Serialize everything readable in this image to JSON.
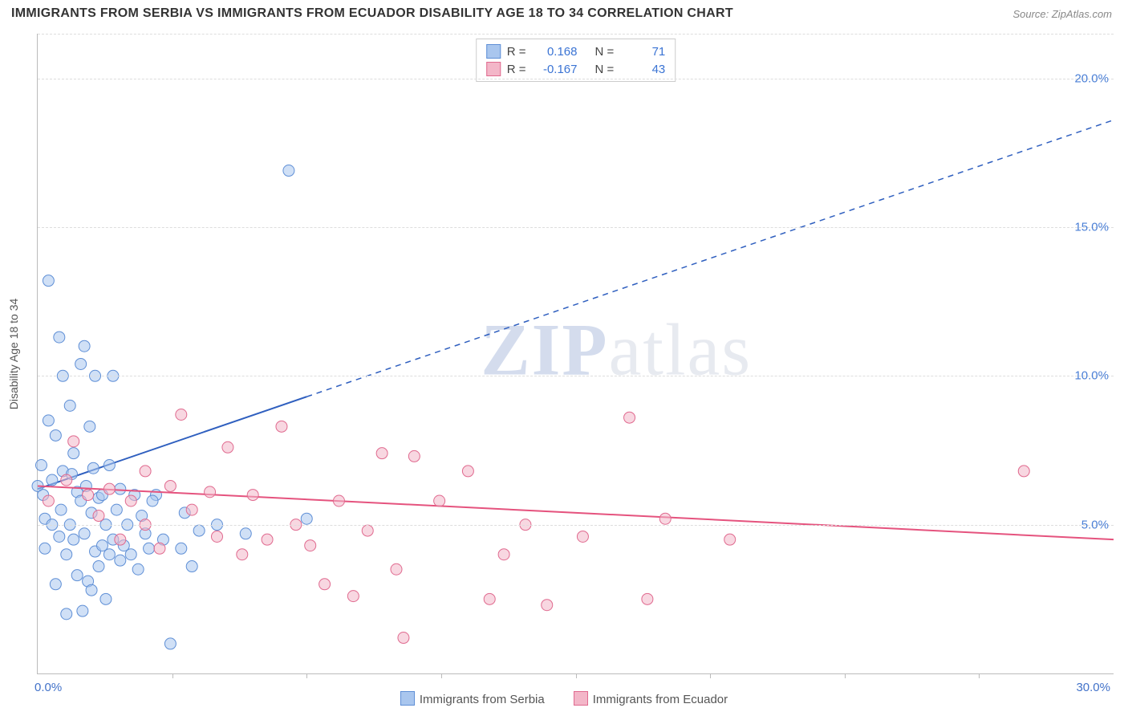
{
  "title": "IMMIGRANTS FROM SERBIA VS IMMIGRANTS FROM ECUADOR DISABILITY AGE 18 TO 34 CORRELATION CHART",
  "source": "Source: ZipAtlas.com",
  "y_axis_label": "Disability Age 18 to 34",
  "watermark_a": "ZIP",
  "watermark_b": "atlas",
  "chart": {
    "type": "scatter",
    "xlim": [
      0,
      30
    ],
    "ylim": [
      0,
      21.5
    ],
    "x_origin_label": "0.0%",
    "x_max_label": "30.0%",
    "y_ticks": [
      5.0,
      10.0,
      15.0,
      20.0
    ],
    "y_tick_labels": [
      "5.0%",
      "10.0%",
      "15.0%",
      "20.0%"
    ],
    "x_tick_positions": [
      3.75,
      7.5,
      11.25,
      15.0,
      18.75,
      22.5,
      26.25
    ],
    "grid_color": "#dddddd",
    "axis_color": "#bbbbbb",
    "background_color": "#ffffff",
    "marker_radius": 7,
    "marker_opacity": 0.55,
    "series": [
      {
        "name": "Immigrants from Serbia",
        "fill": "#a9c6ee",
        "stroke": "#5f8fd6",
        "trend": {
          "x1": 0,
          "y1": 6.2,
          "x2": 7.5,
          "y2": 9.3,
          "solid_until_x": 7.5,
          "dash_to_x": 30,
          "dash_to_y": 18.6,
          "color": "#2f5fbf",
          "width": 2
        },
        "stats": {
          "R": "0.168",
          "N": "71"
        },
        "points": [
          [
            0.0,
            6.3
          ],
          [
            0.1,
            7.0
          ],
          [
            0.15,
            6.0
          ],
          [
            0.2,
            4.2
          ],
          [
            0.2,
            5.2
          ],
          [
            0.3,
            8.5
          ],
          [
            0.3,
            13.2
          ],
          [
            0.4,
            6.5
          ],
          [
            0.4,
            5.0
          ],
          [
            0.5,
            8.0
          ],
          [
            0.5,
            3.0
          ],
          [
            0.6,
            11.3
          ],
          [
            0.6,
            4.6
          ],
          [
            0.65,
            5.5
          ],
          [
            0.7,
            10.0
          ],
          [
            0.7,
            6.8
          ],
          [
            0.8,
            4.0
          ],
          [
            0.8,
            2.0
          ],
          [
            0.9,
            5.0
          ],
          [
            0.9,
            9.0
          ],
          [
            1.0,
            4.5
          ],
          [
            1.0,
            7.4
          ],
          [
            1.1,
            6.1
          ],
          [
            1.1,
            3.3
          ],
          [
            1.2,
            10.4
          ],
          [
            1.2,
            5.8
          ],
          [
            1.25,
            2.1
          ],
          [
            1.3,
            4.7
          ],
          [
            1.3,
            11.0
          ],
          [
            1.35,
            6.3
          ],
          [
            1.4,
            3.1
          ],
          [
            1.45,
            8.3
          ],
          [
            1.5,
            5.4
          ],
          [
            1.5,
            2.8
          ],
          [
            1.55,
            6.9
          ],
          [
            1.6,
            4.1
          ],
          [
            1.6,
            10.0
          ],
          [
            1.7,
            5.9
          ],
          [
            1.7,
            3.6
          ],
          [
            1.8,
            4.3
          ],
          [
            1.8,
            6.0
          ],
          [
            1.9,
            5.0
          ],
          [
            1.9,
            2.5
          ],
          [
            2.0,
            4.0
          ],
          [
            2.0,
            7.0
          ],
          [
            2.1,
            10.0
          ],
          [
            2.1,
            4.5
          ],
          [
            2.2,
            5.5
          ],
          [
            2.3,
            3.8
          ],
          [
            2.3,
            6.2
          ],
          [
            2.4,
            4.3
          ],
          [
            2.5,
            5.0
          ],
          [
            2.6,
            4.0
          ],
          [
            2.7,
            6.0
          ],
          [
            2.8,
            3.5
          ],
          [
            2.9,
            5.3
          ],
          [
            3.0,
            4.7
          ],
          [
            3.1,
            4.2
          ],
          [
            3.3,
            6.0
          ],
          [
            3.5,
            4.5
          ],
          [
            3.7,
            1.0
          ],
          [
            4.0,
            4.2
          ],
          [
            4.1,
            5.4
          ],
          [
            4.3,
            3.6
          ],
          [
            4.5,
            4.8
          ],
          [
            5.0,
            5.0
          ],
          [
            5.8,
            4.7
          ],
          [
            7.0,
            16.9
          ],
          [
            7.5,
            5.2
          ],
          [
            3.2,
            5.8
          ],
          [
            0.95,
            6.7
          ]
        ]
      },
      {
        "name": "Immigrants from Ecuador",
        "fill": "#f3b6c8",
        "stroke": "#e06a8f",
        "trend": {
          "x1": 0,
          "y1": 6.3,
          "x2": 30,
          "y2": 4.5,
          "solid_until_x": 30,
          "color": "#e5537e",
          "width": 2
        },
        "stats": {
          "R": "-0.167",
          "N": "43"
        },
        "points": [
          [
            0.3,
            5.8
          ],
          [
            0.8,
            6.5
          ],
          [
            1.0,
            7.8
          ],
          [
            1.4,
            6.0
          ],
          [
            1.7,
            5.3
          ],
          [
            2.0,
            6.2
          ],
          [
            2.3,
            4.5
          ],
          [
            2.6,
            5.8
          ],
          [
            3.0,
            5.0
          ],
          [
            3.0,
            6.8
          ],
          [
            3.4,
            4.2
          ],
          [
            3.7,
            6.3
          ],
          [
            4.0,
            8.7
          ],
          [
            4.3,
            5.5
          ],
          [
            4.8,
            6.1
          ],
          [
            5.0,
            4.6
          ],
          [
            5.3,
            7.6
          ],
          [
            5.7,
            4.0
          ],
          [
            6.0,
            6.0
          ],
          [
            6.4,
            4.5
          ],
          [
            6.8,
            8.3
          ],
          [
            7.2,
            5.0
          ],
          [
            7.6,
            4.3
          ],
          [
            8.0,
            3.0
          ],
          [
            8.4,
            5.8
          ],
          [
            8.8,
            2.6
          ],
          [
            9.2,
            4.8
          ],
          [
            9.6,
            7.4
          ],
          [
            10.0,
            3.5
          ],
          [
            10.2,
            1.2
          ],
          [
            10.5,
            7.3
          ],
          [
            11.2,
            5.8
          ],
          [
            12.0,
            6.8
          ],
          [
            12.6,
            2.5
          ],
          [
            13.0,
            4.0
          ],
          [
            13.6,
            5.0
          ],
          [
            14.2,
            2.3
          ],
          [
            15.2,
            4.6
          ],
          [
            16.5,
            8.6
          ],
          [
            17.0,
            2.5
          ],
          [
            17.5,
            5.2
          ],
          [
            19.3,
            4.5
          ],
          [
            27.5,
            6.8
          ]
        ]
      }
    ]
  },
  "legend": {
    "items": [
      {
        "label": "Immigrants from Serbia",
        "fill": "#a9c6ee",
        "stroke": "#5f8fd6"
      },
      {
        "label": "Immigrants from Ecuador",
        "fill": "#f3b6c8",
        "stroke": "#e06a8f"
      }
    ]
  }
}
